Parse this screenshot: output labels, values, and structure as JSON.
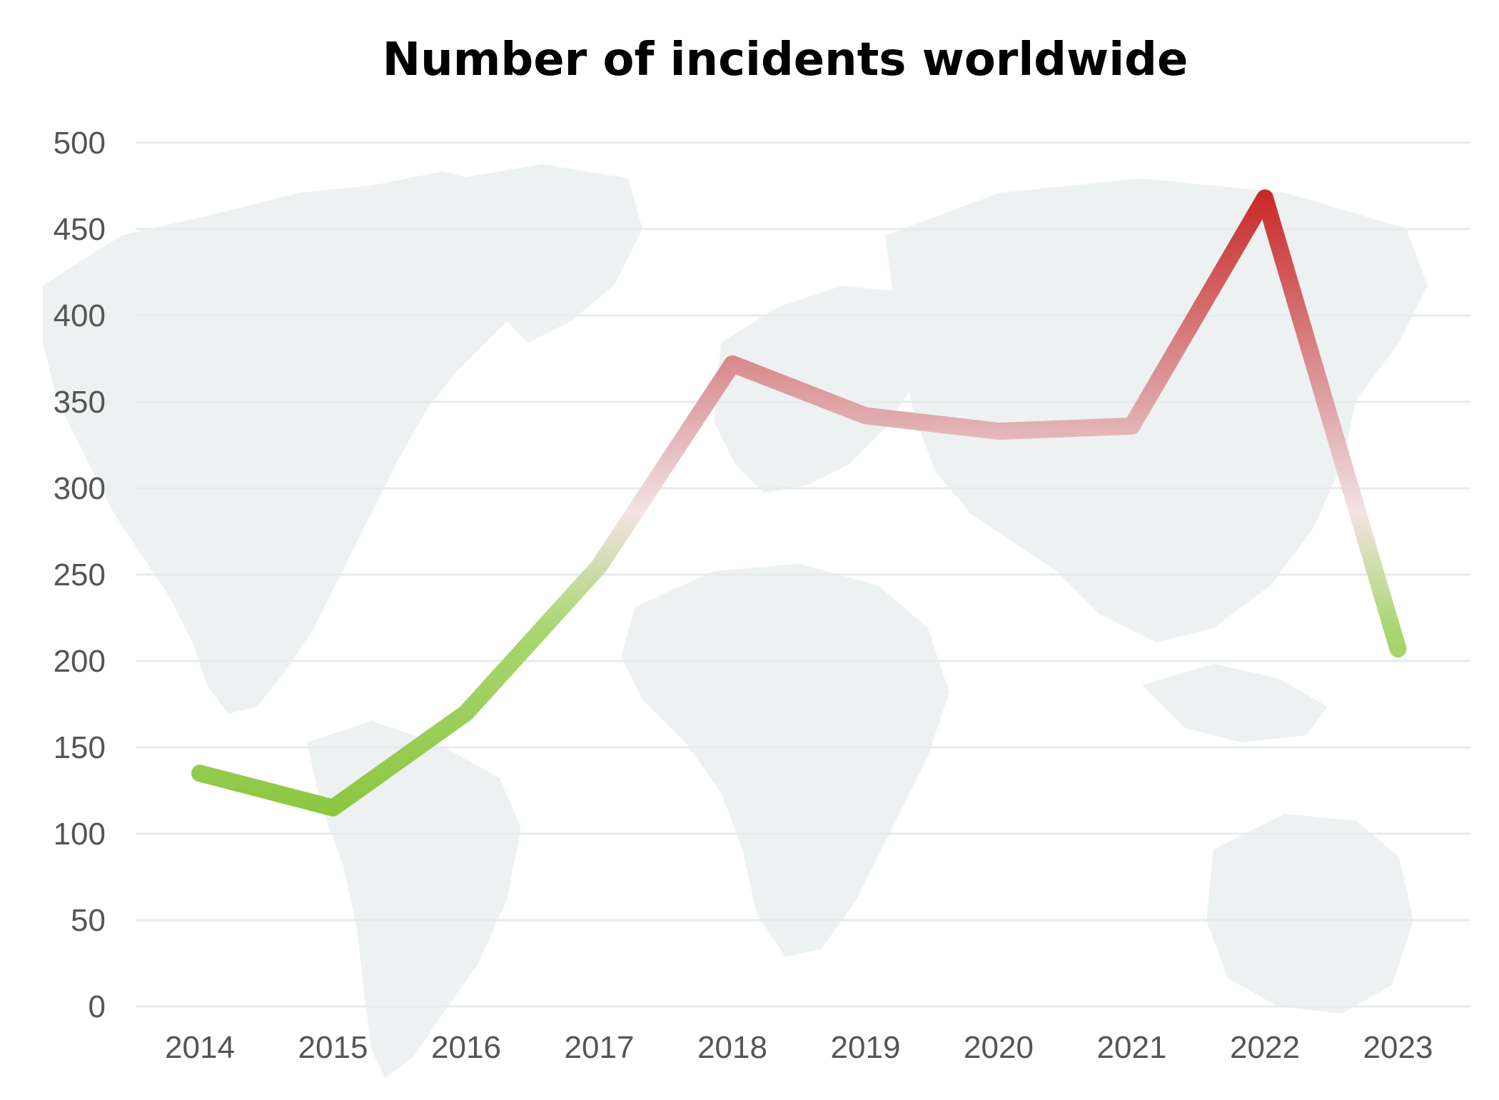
{
  "chart_data": {
    "type": "line",
    "title": "Number of incidents worldwide",
    "xlabel": "",
    "ylabel": "",
    "categories": [
      "2014",
      "2015",
      "2016",
      "2017",
      "2018",
      "2019",
      "2020",
      "2021",
      "2022",
      "2023"
    ],
    "series": [
      {
        "values": [
          135,
          115,
          170,
          255,
          372,
          342,
          333,
          336,
          468,
          207
        ]
      }
    ],
    "ylim": [
      0,
      500
    ],
    "yticks": [
      "0",
      "50",
      "100",
      "150",
      "200",
      "250",
      "300",
      "350",
      "400",
      "450",
      "500"
    ],
    "grid": true,
    "background": "world-map",
    "colors": {
      "low": "#8cc63f",
      "mid": "#f3e3e4",
      "high": "#c8201f",
      "grid": "#e8ebec",
      "map": "#eef1f2",
      "tick_text": "#555555",
      "title": "#000000"
    }
  }
}
